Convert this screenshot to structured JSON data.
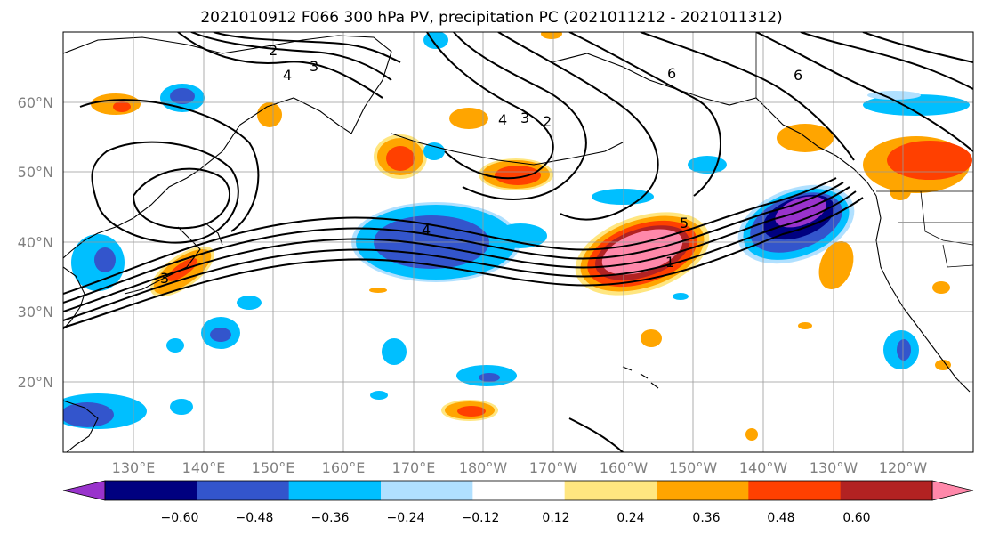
{
  "title": "2021010912 F066 300 hPa PV, precipitation PC (2021011212 - 2021011312)",
  "lat_labels": [
    "60°N",
    "50°N",
    "40°N",
    "30°N",
    "20°N"
  ],
  "lon_labels": [
    "130°E",
    "140°E",
    "150°E",
    "160°E",
    "170°E",
    "180°W",
    "170°W",
    "160°W",
    "150°W",
    "140°W",
    "130°W",
    "120°W"
  ],
  "colorbar": {
    "labels": [
      "−0.60",
      "−0.48",
      "−0.36",
      "−0.24",
      "−0.12",
      "0.12",
      "0.24",
      "0.36",
      "0.48",
      "0.60"
    ],
    "colors": [
      "#9933cc",
      "#000080",
      "#3355cc",
      "#00bfff",
      "#b0e0ff",
      "#ffffff",
      "#ffe680",
      "#ffa500",
      "#ff4000",
      "#b22222",
      "#ff88aa"
    ]
  },
  "contour_labels": {
    "pv2": "2",
    "pv3": "3",
    "pv4a": "4",
    "pv6a": "6",
    "pv6b": "6",
    "pv4b": "4",
    "pv3b": "3",
    "pv2b": "2",
    "pv4c": "4",
    "pv5": "5",
    "pv1": "1",
    "pv3c": "3"
  }
}
